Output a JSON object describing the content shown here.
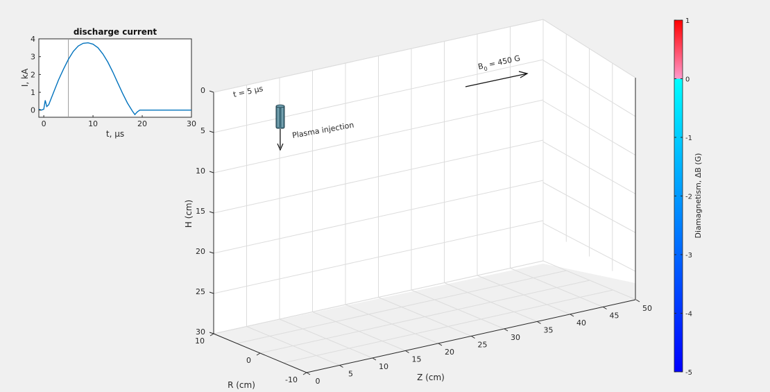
{
  "chart_data": [
    {
      "type": "line",
      "title": "discharge current",
      "xlabel": "t, μs",
      "ylabel": "I, kA",
      "xlim": [
        -1,
        30
      ],
      "ylim": [
        -0.4,
        4
      ],
      "xticks": [
        "0",
        "10",
        "20",
        "30"
      ],
      "yticks": [
        "0",
        "1",
        "2",
        "3",
        "4"
      ],
      "marker_line_t": 5,
      "line_color": "#0072bd",
      "series": [
        {
          "x": [
            -1,
            -0.5,
            0,
            0.3,
            0.6,
            1,
            2,
            3,
            4,
            5,
            6,
            7,
            8,
            9,
            10,
            11,
            12,
            13,
            14,
            15,
            16,
            17,
            18,
            18.5,
            19,
            19.5,
            20,
            22,
            25,
            28,
            30
          ],
          "values": [
            0.05,
            0.0,
            0.05,
            0.55,
            0.2,
            0.3,
            1.0,
            1.7,
            2.3,
            2.85,
            3.3,
            3.6,
            3.75,
            3.78,
            3.7,
            3.5,
            3.15,
            2.7,
            2.15,
            1.55,
            0.95,
            0.4,
            -0.05,
            -0.25,
            -0.1,
            0.0,
            0.0,
            0.0,
            0.0,
            0.0,
            0.0
          ]
        }
      ]
    },
    {
      "type": "scatter",
      "title": "",
      "annotation_time": "t = 5 μs",
      "annotation_plasma": "Plasma injection",
      "annotation_b0_main": "B",
      "annotation_b0_sub": "0",
      "annotation_b0_value": " = 450 G",
      "xlabel": "R (cm)",
      "ylabel": "Z (cm)",
      "zlabel": "H (cm)",
      "r_ticks": [
        "10",
        "0",
        "-10"
      ],
      "z_ticks": [
        "0",
        "5",
        "10",
        "15",
        "20",
        "25",
        "30",
        "35",
        "40",
        "45",
        "50"
      ],
      "h_ticks": [
        "0",
        "5",
        "10",
        "15",
        "20",
        "25",
        "30"
      ],
      "rlim": [
        -10,
        10
      ],
      "zlim": [
        0,
        50
      ],
      "hlim": [
        0,
        30
      ],
      "grid": true,
      "colorbar": {
        "label": "Diamagnetism, ΔB (G)",
        "ticks": [
          "1",
          "0",
          "-1",
          "-2",
          "-3",
          "-4",
          "-5"
        ],
        "range": [
          -5,
          1
        ],
        "colors": {
          "top": "#ff0000",
          "upper": "#ff99cc",
          "zero": "#00ffff",
          "bottom": "#0000ff"
        }
      }
    }
  ]
}
